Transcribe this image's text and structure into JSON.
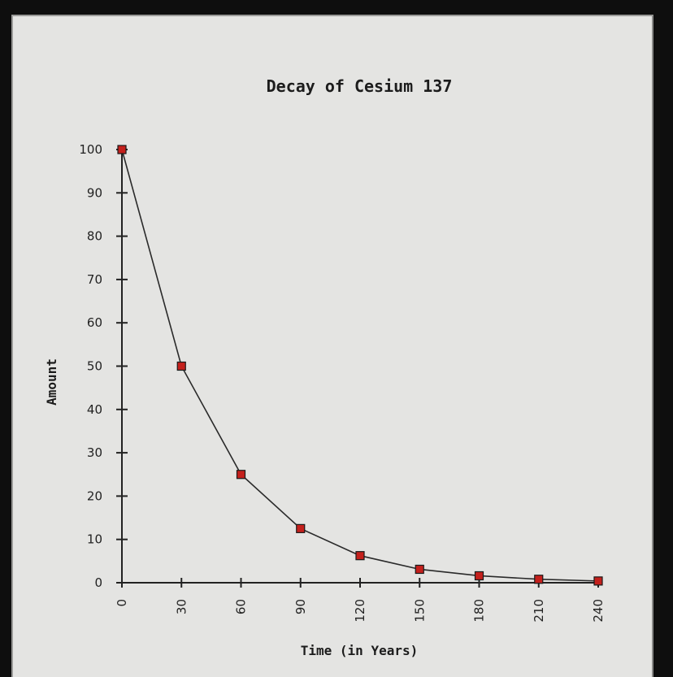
{
  "chart_data": {
    "type": "line",
    "title": "Decay of Cesium 137",
    "xlabel": "Time (in Years)",
    "ylabel": "Amount",
    "x": [
      0,
      30,
      60,
      90,
      120,
      150,
      180,
      210,
      240
    ],
    "x_tick_labels": [
      "0",
      "30",
      "60",
      "90",
      "120",
      "150",
      "180",
      "210",
      "240"
    ],
    "y_ticks": [
      0,
      10,
      20,
      30,
      40,
      50,
      60,
      70,
      80,
      90,
      100
    ],
    "y_tick_labels": [
      "0",
      "10",
      "20",
      "30",
      "40",
      "50",
      "60",
      "70",
      "80",
      "90",
      "100"
    ],
    "xlim": [
      0,
      240
    ],
    "ylim": [
      0,
      100
    ],
    "grid": false,
    "series": [
      {
        "values": [
          100,
          50,
          25,
          12.5,
          6.25,
          3.1,
          1.6,
          0.8,
          0.4
        ],
        "marker": "square",
        "marker_color": "#c4201c",
        "line_color": "#2a2a2a"
      }
    ]
  }
}
